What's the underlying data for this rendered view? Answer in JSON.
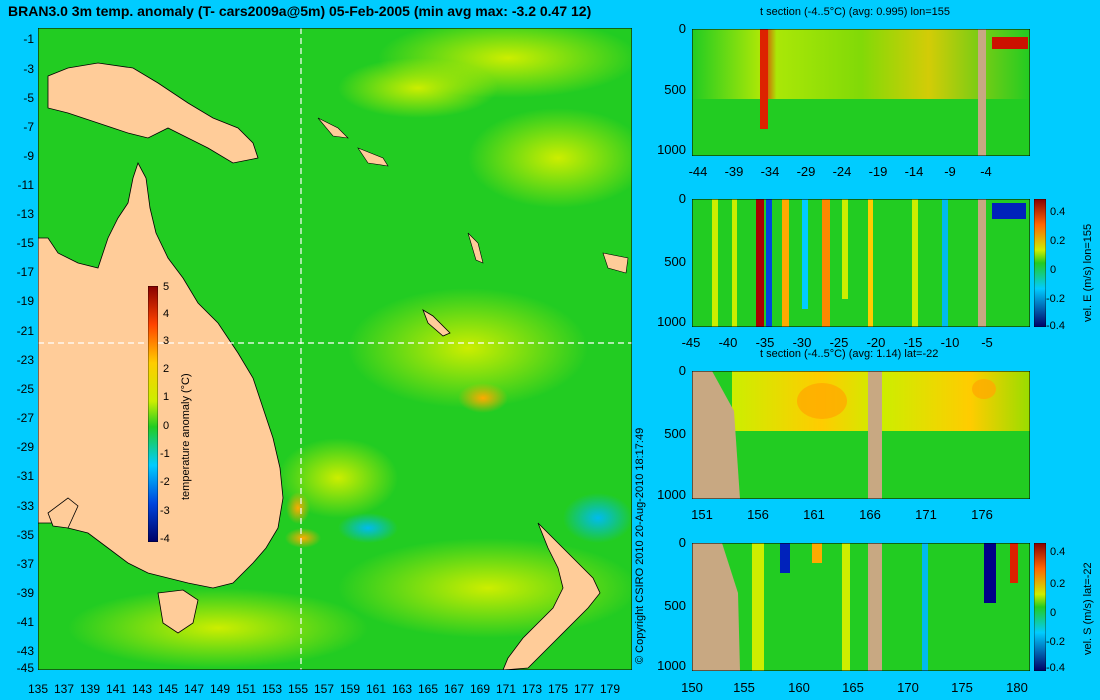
{
  "map": {
    "title": "BRAN3.0 3m temp. anomaly (T- cars2009a@5m) 05-Feb-2005 (min avg max: -3.2 0.47 12)",
    "y_ticks": [
      "-1",
      "-3",
      "-5",
      "-7",
      "-9",
      "-11",
      "-13",
      "-15",
      "-17",
      "-19",
      "-21",
      "-23",
      "-25",
      "-27",
      "-29",
      "-31",
      "-33",
      "-35",
      "-37",
      "-39",
      "-41",
      "-43",
      "-45"
    ],
    "x_ticks": [
      "135",
      "137",
      "139",
      "141",
      "143",
      "145",
      "147",
      "149",
      "151",
      "153",
      "155",
      "157",
      "159",
      "161",
      "163",
      "165",
      "167",
      "169",
      "171",
      "173",
      "175",
      "177",
      "179"
    ],
    "colorbar": {
      "label": "temperature anomaly (°C)",
      "ticks": [
        "5",
        "4",
        "3",
        "2",
        "1",
        "0",
        "-1",
        "-2",
        "-3",
        "-4"
      ]
    },
    "copyright": "© Copyright CSIRO 2010   20-Aug-2010 18:17:49"
  },
  "sections": [
    {
      "title": "t section (-4..5°C) (avg: 0.995) lon=155",
      "y_ticks": [
        "0",
        "500",
        "1000"
      ],
      "x_ticks": [
        "-44",
        "-39",
        "-34",
        "-29",
        "-24",
        "-19",
        "-14",
        "-9",
        "-4"
      ]
    },
    {
      "title": "",
      "y_ticks": [
        "0",
        "500",
        "1000"
      ],
      "x_ticks": [
        "-45",
        "-40",
        "-35",
        "-30",
        "-25",
        "-20",
        "-15",
        "-10",
        "-5"
      ],
      "colorbar_ticks": [
        "0.4",
        "0.2",
        "0",
        "-0.2",
        "-0.4"
      ],
      "colorbar_label": "vel. E (m/s) lon=155"
    },
    {
      "title": "t section (-4..5°C) (avg: 1.14) lat=-22",
      "y_ticks": [
        "0",
        "500",
        "1000"
      ],
      "x_ticks": [
        "151",
        "156",
        "161",
        "166",
        "171",
        "176"
      ]
    },
    {
      "title": "",
      "y_ticks": [
        "0",
        "500",
        "1000"
      ],
      "x_ticks": [
        "150",
        "155",
        "160",
        "165",
        "170",
        "175",
        "180"
      ],
      "colorbar_ticks": [
        "0.4",
        "0.2",
        "0",
        "-0.2",
        "-0.4"
      ],
      "colorbar_label": "vel. S (m/s) lat=-22"
    }
  ],
  "colors": {
    "background": "#00ccff",
    "ocean": "#22cc22",
    "land": "#ffcc99",
    "land_section": "#c8a882"
  }
}
